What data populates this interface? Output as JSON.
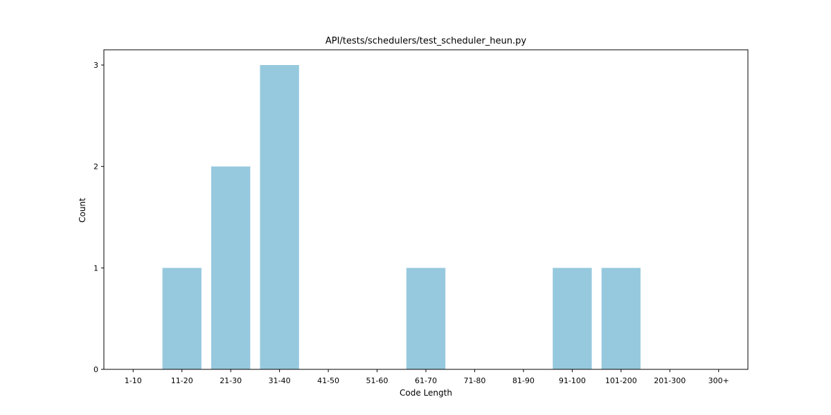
{
  "chart_data": {
    "type": "bar",
    "title": "API/tests/schedulers/test_scheduler_heun.py",
    "xlabel": "Code Length",
    "ylabel": "Count",
    "categories": [
      "1-10",
      "11-20",
      "21-30",
      "31-40",
      "41-50",
      "51-60",
      "61-70",
      "71-80",
      "81-90",
      "91-100",
      "101-200",
      "201-300",
      "300+"
    ],
    "values": [
      0,
      1,
      2,
      3,
      0,
      0,
      1,
      0,
      0,
      1,
      1,
      0,
      0
    ],
    "ylim": [
      0,
      3.15
    ],
    "yticks": [
      0,
      1,
      2,
      3
    ],
    "grid": false,
    "legend": "none",
    "colors": {
      "bar": "#96c9de",
      "axis": "#000000"
    }
  }
}
